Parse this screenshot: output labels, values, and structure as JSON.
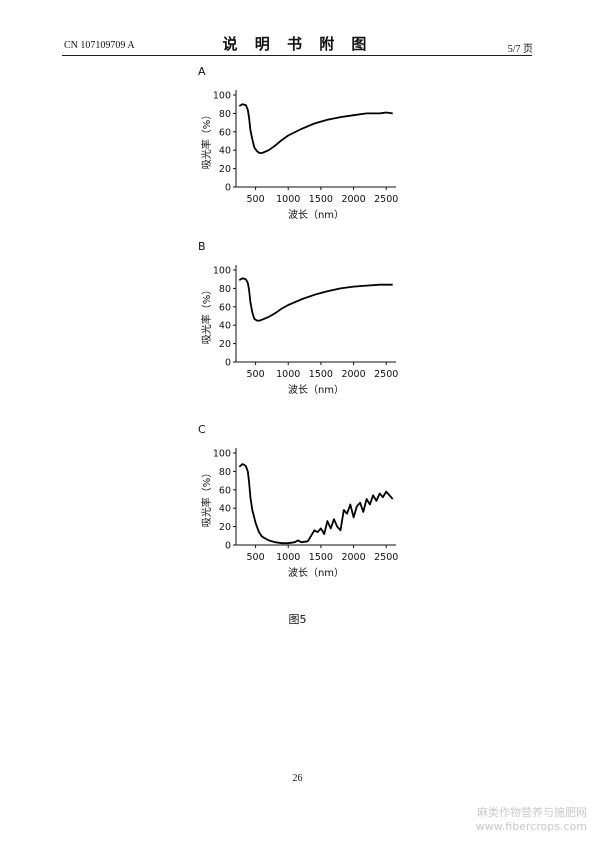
{
  "header": {
    "doc_number": "CN 107109709 A",
    "title": "说 明 书 附 图",
    "page": "5/7 页"
  },
  "figure_caption": "图5",
  "page_number": "26",
  "watermark": {
    "line1": "麻类作物营养与施肥网",
    "line2": "www.fibercrops.com"
  },
  "chart_data": [
    {
      "type": "line",
      "panel_label": "A",
      "xlabel": "波长（nm）",
      "ylabel": "吸光率（%）",
      "xlim": [
        200,
        2650
      ],
      "ylim": [
        0,
        100
      ],
      "xticks": [
        500,
        1000,
        1500,
        2000,
        2500
      ],
      "yticks": [
        0,
        20,
        40,
        60,
        80,
        100
      ],
      "series": [
        {
          "x": [
            250,
            300,
            350,
            380,
            400,
            420,
            450,
            480,
            520,
            560,
            600,
            700,
            800,
            900,
            1000,
            1200,
            1400,
            1600,
            1800,
            2000,
            2200,
            2400,
            2500,
            2600
          ],
          "y": [
            88,
            90,
            89,
            84,
            75,
            62,
            52,
            43,
            39,
            37,
            37,
            40,
            45,
            51,
            56,
            63,
            69,
            73,
            76,
            78,
            80,
            80,
            81,
            80
          ]
        }
      ]
    },
    {
      "type": "line",
      "panel_label": "B",
      "xlabel": "波长（nm）",
      "ylabel": "吸光率（%）",
      "xlim": [
        200,
        2650
      ],
      "ylim": [
        0,
        100
      ],
      "xticks": [
        500,
        1000,
        1500,
        2000,
        2500
      ],
      "yticks": [
        0,
        20,
        40,
        60,
        80,
        100
      ],
      "series": [
        {
          "x": [
            250,
            300,
            350,
            380,
            400,
            420,
            450,
            480,
            520,
            560,
            600,
            700,
            800,
            900,
            1000,
            1200,
            1400,
            1600,
            1800,
            2000,
            2200,
            2400,
            2500,
            2600
          ],
          "y": [
            89,
            91,
            90,
            86,
            78,
            65,
            54,
            47,
            45,
            45,
            46,
            49,
            53,
            58,
            62,
            68,
            73,
            77,
            80,
            82,
            83,
            84,
            84,
            84
          ]
        }
      ]
    },
    {
      "type": "line",
      "panel_label": "C",
      "xlabel": "波长（nm）",
      "ylabel": "吸光率（%）",
      "xlim": [
        200,
        2650
      ],
      "ylim": [
        0,
        100
      ],
      "xticks": [
        500,
        1000,
        1500,
        2000,
        2500
      ],
      "yticks": [
        0,
        20,
        40,
        60,
        80,
        100
      ],
      "series": [
        {
          "x": [
            250,
            300,
            350,
            380,
            400,
            420,
            450,
            500,
            550,
            600,
            700,
            800,
            900,
            1000,
            1100,
            1150,
            1200,
            1300,
            1350,
            1400,
            1450,
            1500,
            1550,
            1600,
            1650,
            1700,
            1750,
            1800,
            1850,
            1900,
            1950,
            2000,
            2050,
            2100,
            2150,
            2200,
            2250,
            2300,
            2350,
            2400,
            2450,
            2500,
            2550,
            2600
          ],
          "y": [
            85,
            88,
            86,
            80,
            68,
            52,
            38,
            24,
            14,
            9,
            5,
            3,
            2,
            2,
            3,
            5,
            3,
            4,
            10,
            16,
            14,
            18,
            12,
            26,
            18,
            28,
            20,
            16,
            38,
            34,
            44,
            30,
            42,
            46,
            36,
            50,
            44,
            54,
            48,
            56,
            52,
            58,
            54,
            50
          ]
        }
      ]
    }
  ]
}
